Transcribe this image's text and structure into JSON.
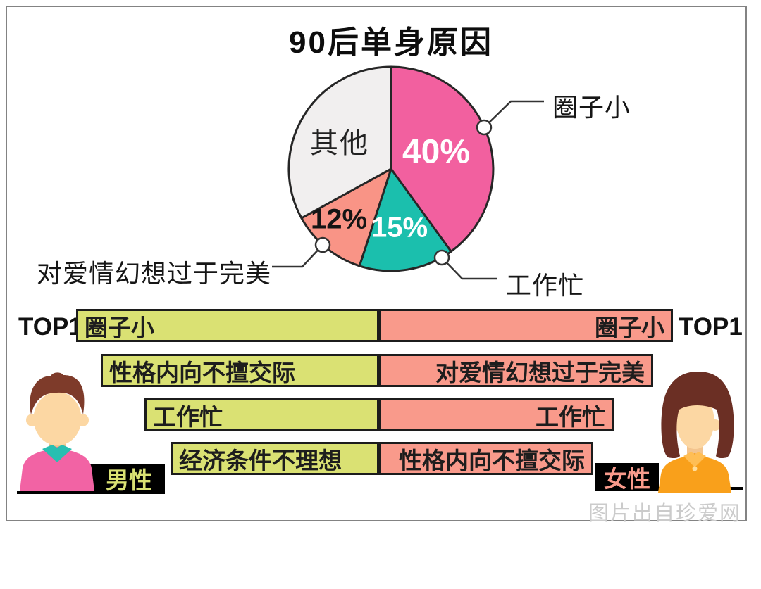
{
  "page": {
    "watermark": "图片出自珍爱网"
  },
  "colors": {
    "pink": "#f2609f",
    "teal": "#1bbfad",
    "salmonSlice": "#f99486",
    "graySlice": "#f1efef",
    "outline": "#262626",
    "greenBar": "#dae173",
    "salmonBar": "#f99a8b",
    "frameBorder": "#838383",
    "watermarkGray": "#cbcbcb"
  },
  "chart_data": [
    {
      "type": "pie",
      "title": "90后单身原因",
      "direction": "clockwise",
      "start_angle_deg": 0,
      "legend_position": "callouts",
      "slices": [
        {
          "label": "圈子小",
          "value": 40,
          "display": "40%",
          "color": "#f2609f",
          "text_color": "#ffffff"
        },
        {
          "label": "工作忙",
          "value": 15,
          "display": "15%",
          "color": "#1bbfad",
          "text_color": "#ffffff"
        },
        {
          "label": "对爱情幻想过于完美",
          "value": 12,
          "display": "12%",
          "color": "#f99486",
          "text_color": "#141414"
        },
        {
          "label": "其他",
          "value": 33,
          "display": "其他",
          "color": "#f1efef",
          "text_color": "#222222"
        }
      ]
    },
    {
      "type": "table",
      "columns": [
        "男性",
        "女性"
      ],
      "rank_tag": "TOP1",
      "rows": [
        [
          "圈子小",
          "圈子小"
        ],
        [
          "性格内向不擅交际",
          "对爱情幻想过于完美"
        ],
        [
          "工作忙",
          "工作忙"
        ],
        [
          "经济条件不理想",
          "性格内向不擅交际"
        ]
      ]
    }
  ]
}
